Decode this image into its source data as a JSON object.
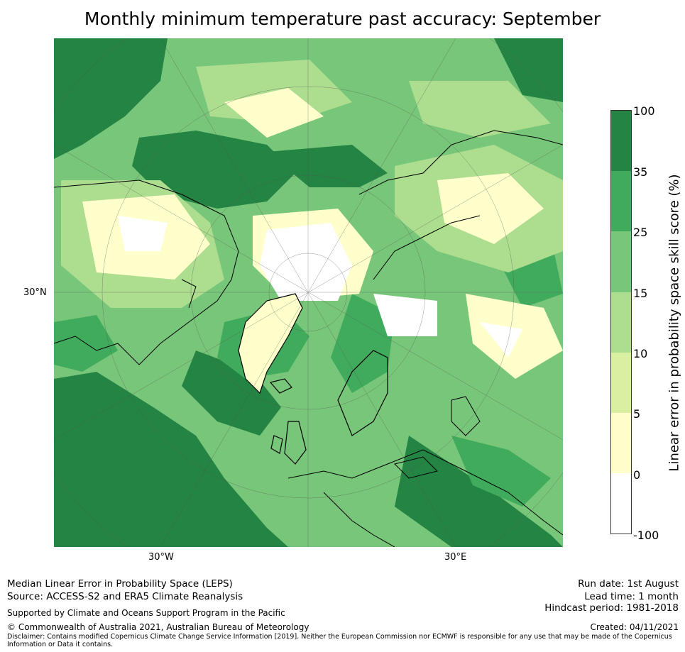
{
  "title": "Monthly minimum temperature past accuracy: September",
  "map": {
    "lat_label": "30°N",
    "lon_labels": [
      "30°W",
      "30°E"
    ],
    "colors": {
      "ocean_dark": "#238443",
      "mid": "#41ab5d",
      "light": "#78c679",
      "pale": "#addd8e",
      "paler": "#d9f0a3",
      "cream": "#ffffcc",
      "white": "#ffffff",
      "coast": "#000000"
    }
  },
  "colorbar": {
    "label": "Linear error in probability space skill score (%)",
    "ticks": [
      "100",
      "35",
      "25",
      "15",
      "10",
      "5",
      "0",
      "-100"
    ],
    "colors": [
      "#238443",
      "#41ab5d",
      "#78c679",
      "#addd8e",
      "#d9f0a3",
      "#ffffcc",
      "#ffffff"
    ]
  },
  "footer": {
    "left_line1": "Median Linear Error in Probability Space (LEPS)",
    "left_line2": "Source: ACCESS-S2 and ERA5 Climate Reanalysis",
    "supported": "Supported by Climate and Oceans Support Program in the Pacific",
    "copyright": "© Commonwealth of Australia 2021, Australian Bureau of Meteorology",
    "run_date": "Run date: 1st August",
    "lead_time": "Lead time: 1 month",
    "hindcast": "Hindcast period: 1981-2018",
    "created": "Created: 04/11/2021",
    "disclaimer": "Disclaimer: Contains modified Copernicus Climate Change Service Information [2019]. Neither the European Commission nor ECMWF is responsible for any use that may be made of the Copernicus Information or Data it contains."
  }
}
